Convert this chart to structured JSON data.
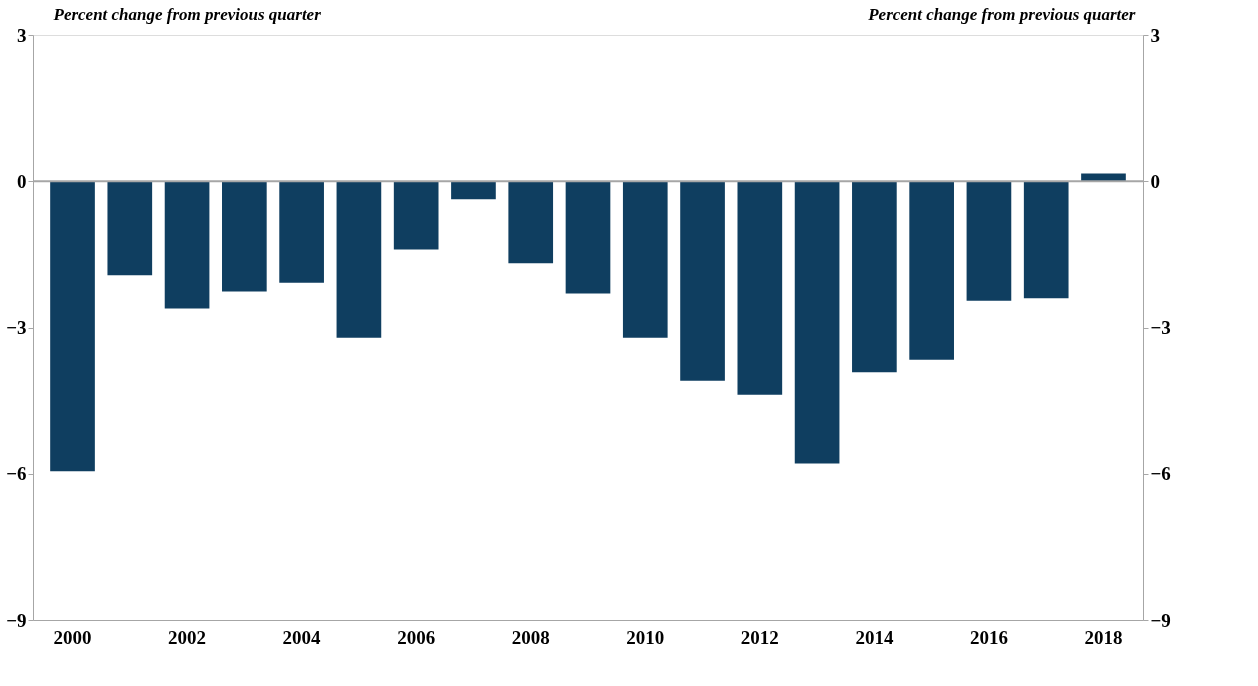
{
  "chart_data": {
    "type": "bar",
    "ylabel": "Percent change from previous quarter",
    "y2label": "Percent change from previous quarter",
    "categories": [
      "2000",
      null,
      "2002",
      null,
      "2004",
      null,
      "2006",
      null,
      "2008",
      null,
      "2010",
      null,
      "2012",
      null,
      "2014",
      null,
      "2016",
      null,
      "2018"
    ],
    "values": [
      -5.95,
      -1.93,
      -2.61,
      -2.26,
      -2.08,
      -3.21,
      -1.4,
      -0.37,
      -1.68,
      -2.3,
      -3.21,
      -4.09,
      -4.38,
      -5.79,
      -3.92,
      -3.66,
      -2.45,
      -2.4,
      0.16
    ],
    "color": "#0f3e60",
    "ylim": [
      -9,
      3
    ],
    "yticks": [
      -9,
      -6,
      -3,
      0,
      3
    ],
    "y2lim": [
      -9,
      3
    ],
    "y2ticks": [
      -9,
      -6,
      -3,
      0,
      3
    ],
    "ref_lines": [
      {
        "axis": "y",
        "value": 0,
        "color": "#a6a6a6"
      }
    ],
    "grid": false
  }
}
